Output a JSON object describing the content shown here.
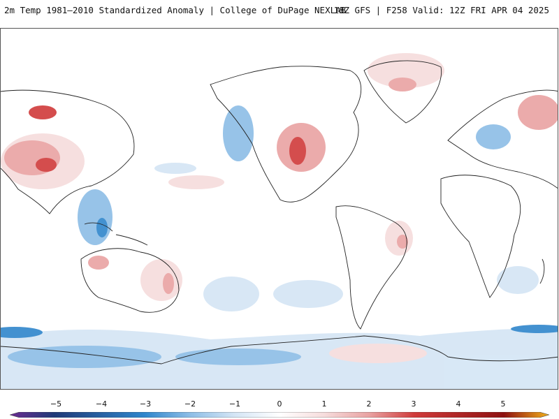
{
  "header": {
    "title": "2m Temp 1981–2010 Standardized Anomaly | College of DuPage NEXLAB",
    "run_info": "18Z GFS | F258 Valid: 12Z FRI APR 04 2025"
  },
  "colorbar": {
    "labels": [
      "−5",
      "−4",
      "−3",
      "−2",
      "−1",
      "0",
      "1",
      "2",
      "3",
      "4",
      "5"
    ],
    "colors": {
      "m5": "#6a2c91",
      "m4": "#1f3a78",
      "m3": "#2f86cc",
      "m2": "#8cbde6",
      "m1": "#d4e5f5",
      "zero": "#ffffff",
      "p1": "#f6dcdc",
      "p2": "#e9a2a2",
      "p3": "#d03a3a",
      "p4": "#8e1010",
      "p5": "#f2b01a"
    }
  }
}
